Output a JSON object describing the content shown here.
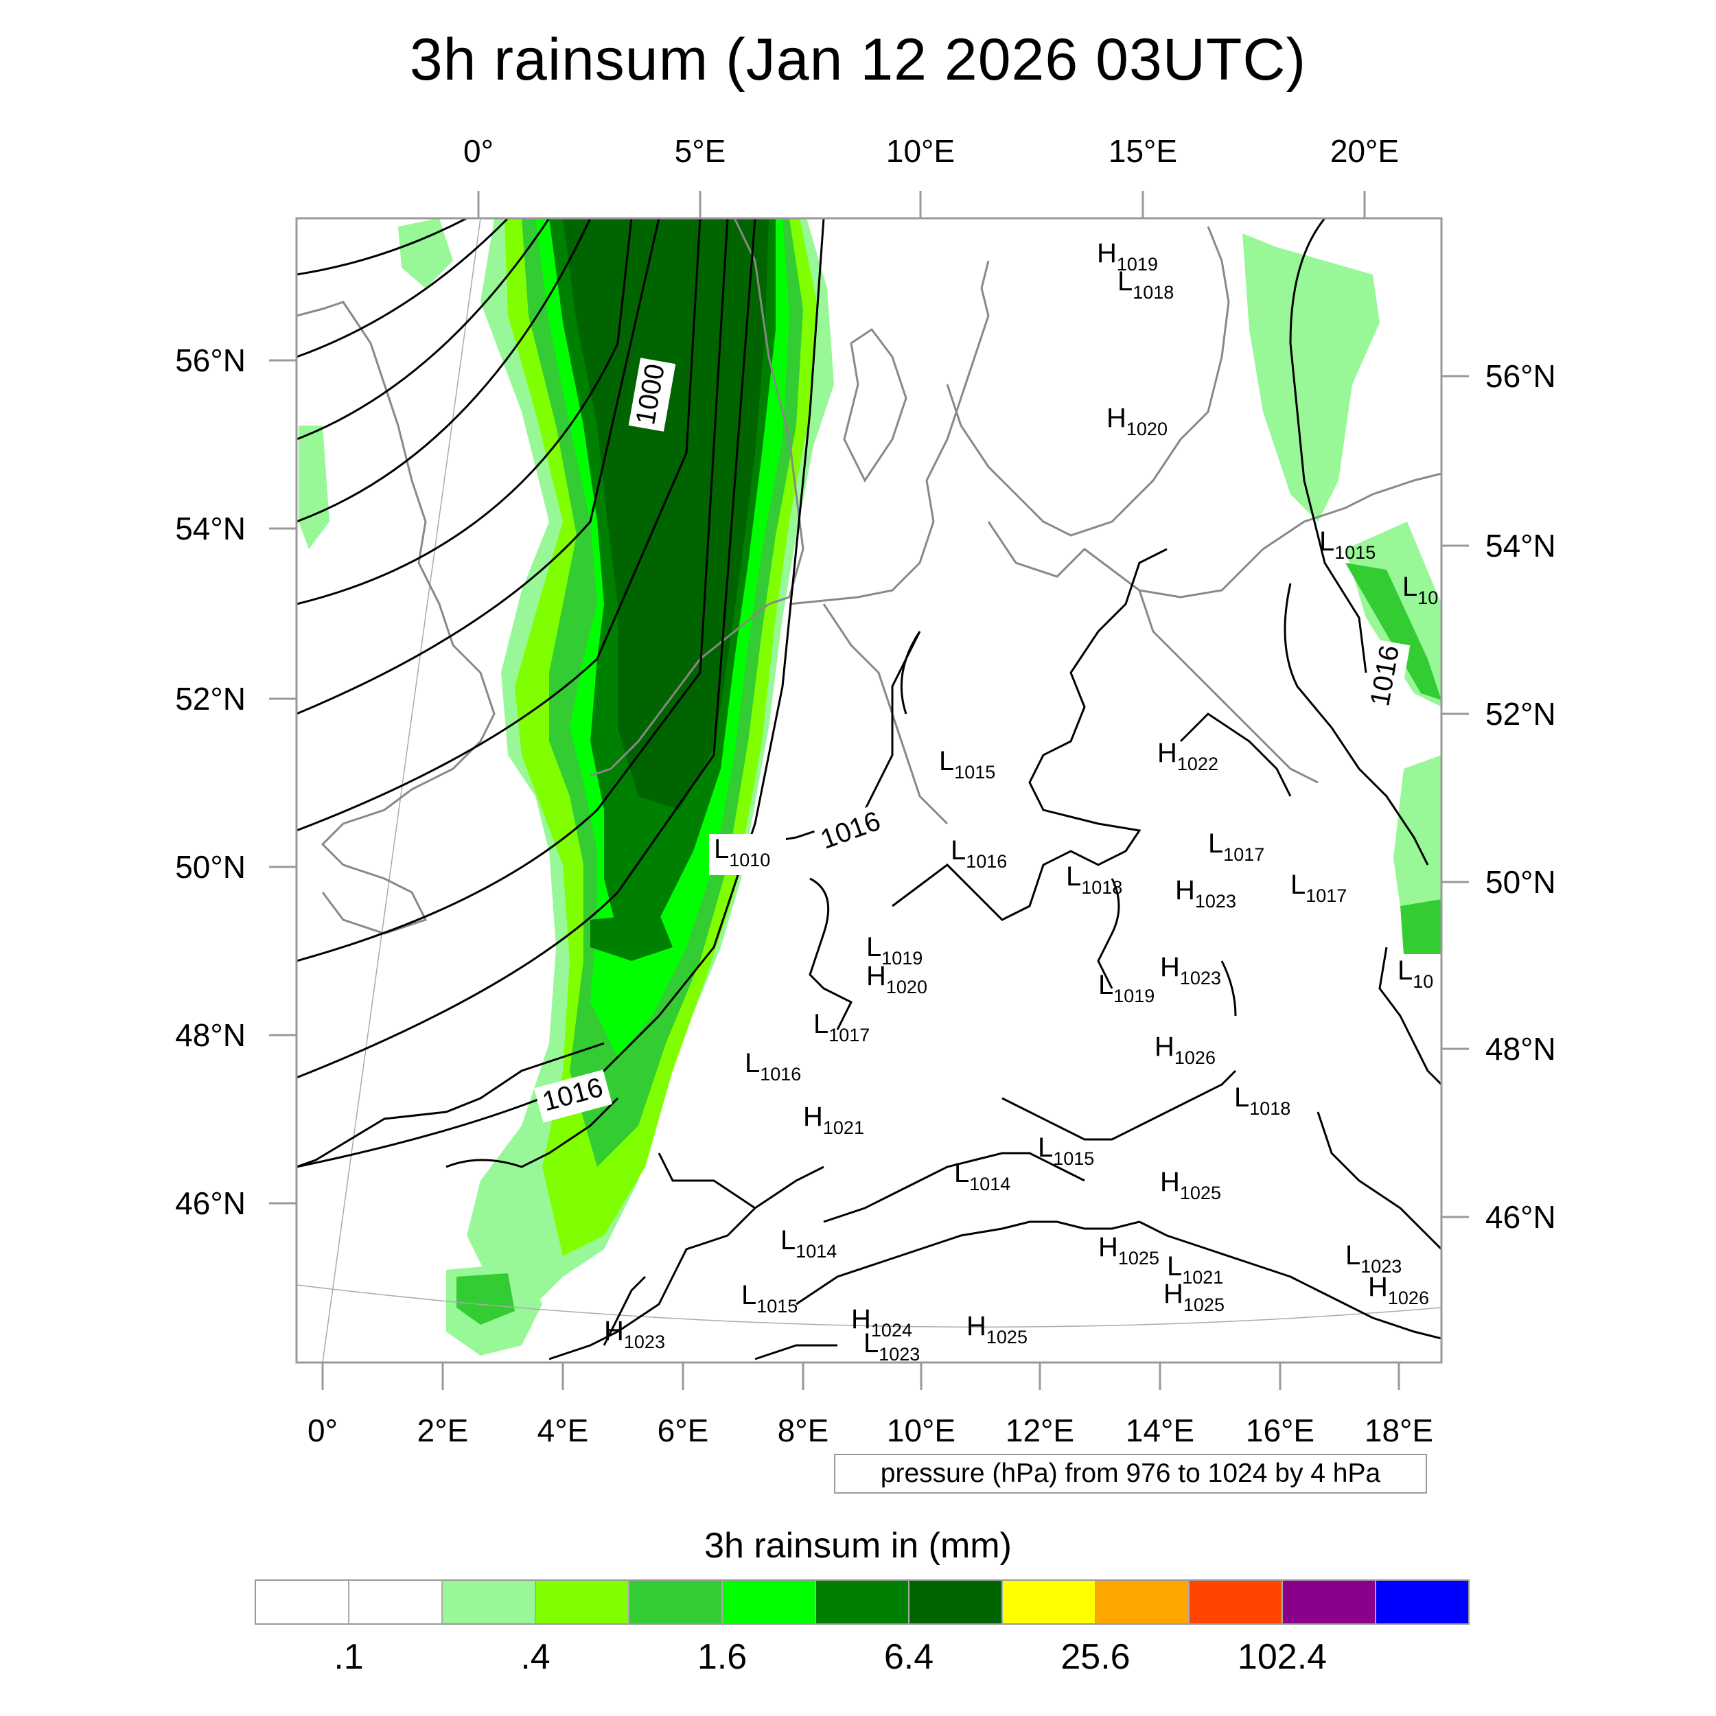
{
  "title": "3h rainsum (Jan 12 2026 03UTC)",
  "map": {
    "top_lon_labels": [
      "0°",
      "5°E",
      "10°E",
      "15°E",
      "20°E"
    ],
    "bottom_lon_labels": [
      "0°",
      "2°E",
      "4°E",
      "6°E",
      "8°E",
      "10°E",
      "12°E",
      "14°E",
      "16°E",
      "18°E"
    ],
    "left_lat_labels": [
      "56°N",
      "54°N",
      "52°N",
      "50°N",
      "48°N",
      "46°N"
    ],
    "right_lat_labels": [
      "56°N",
      "54°N",
      "52°N",
      "50°N",
      "48°N",
      "46°N"
    ],
    "isobar_labels": [
      "1000",
      "1016",
      "1016",
      "1016"
    ],
    "pressure_centers": [
      {
        "type": "H",
        "value": "1019"
      },
      {
        "type": "L",
        "value": "1018"
      },
      {
        "type": "H",
        "value": "1020"
      },
      {
        "type": "L",
        "value": "1015"
      },
      {
        "type": "L",
        "value": "10"
      },
      {
        "type": "H",
        "value": "1022"
      },
      {
        "type": "L",
        "value": "1015"
      },
      {
        "type": "L",
        "value": "1010"
      },
      {
        "type": "L",
        "value": "1016"
      },
      {
        "type": "L",
        "value": "1018"
      },
      {
        "type": "H",
        "value": "1023"
      },
      {
        "type": "L",
        "value": "1017"
      },
      {
        "type": "L",
        "value": "1017"
      },
      {
        "type": "L",
        "value": "1019"
      },
      {
        "type": "H",
        "value": "1020"
      },
      {
        "type": "H",
        "value": "1023"
      },
      {
        "type": "L",
        "value": "1019"
      },
      {
        "type": "L",
        "value": "10"
      },
      {
        "type": "L",
        "value": "1017"
      },
      {
        "type": "H",
        "value": "1026"
      },
      {
        "type": "L",
        "value": "1016"
      },
      {
        "type": "L",
        "value": "1018"
      },
      {
        "type": "H",
        "value": "1021"
      },
      {
        "type": "L",
        "value": "1015"
      },
      {
        "type": "L",
        "value": "1014"
      },
      {
        "type": "H",
        "value": "1025"
      },
      {
        "type": "L",
        "value": "1014"
      },
      {
        "type": "H",
        "value": "1025"
      },
      {
        "type": "L",
        "value": "1021"
      },
      {
        "type": "L",
        "value": "1023"
      },
      {
        "type": "H",
        "value": "1025"
      },
      {
        "type": "H",
        "value": "1026"
      },
      {
        "type": "L",
        "value": "1015"
      },
      {
        "type": "H",
        "value": "1024"
      },
      {
        "type": "L",
        "value": "1023"
      },
      {
        "type": "H",
        "value": "1025"
      },
      {
        "type": "H",
        "value": "1023"
      }
    ],
    "rain_fill_colors": {
      "light": "#98f898",
      "lime": "#7fff00",
      "medium": "#33cc33",
      "bright": "#00ff00",
      "dark": "#008000",
      "darker": "#006400"
    }
  },
  "pressure_note": "pressure (hPa) from 976 to 1024 by 4 hPa",
  "legend": {
    "title": "3h rainsum in (mm)",
    "colors": [
      "#ffffff",
      "#ffffff",
      "#98f898",
      "#7fff00",
      "#33cc33",
      "#00ff00",
      "#008000",
      "#006400",
      "#ffff00",
      "#ffa500",
      "#ff4500",
      "#8b008b",
      "#0000ff"
    ],
    "labels": [
      ".1",
      ".4",
      "1.6",
      "6.4",
      "25.6",
      "102.4"
    ]
  }
}
